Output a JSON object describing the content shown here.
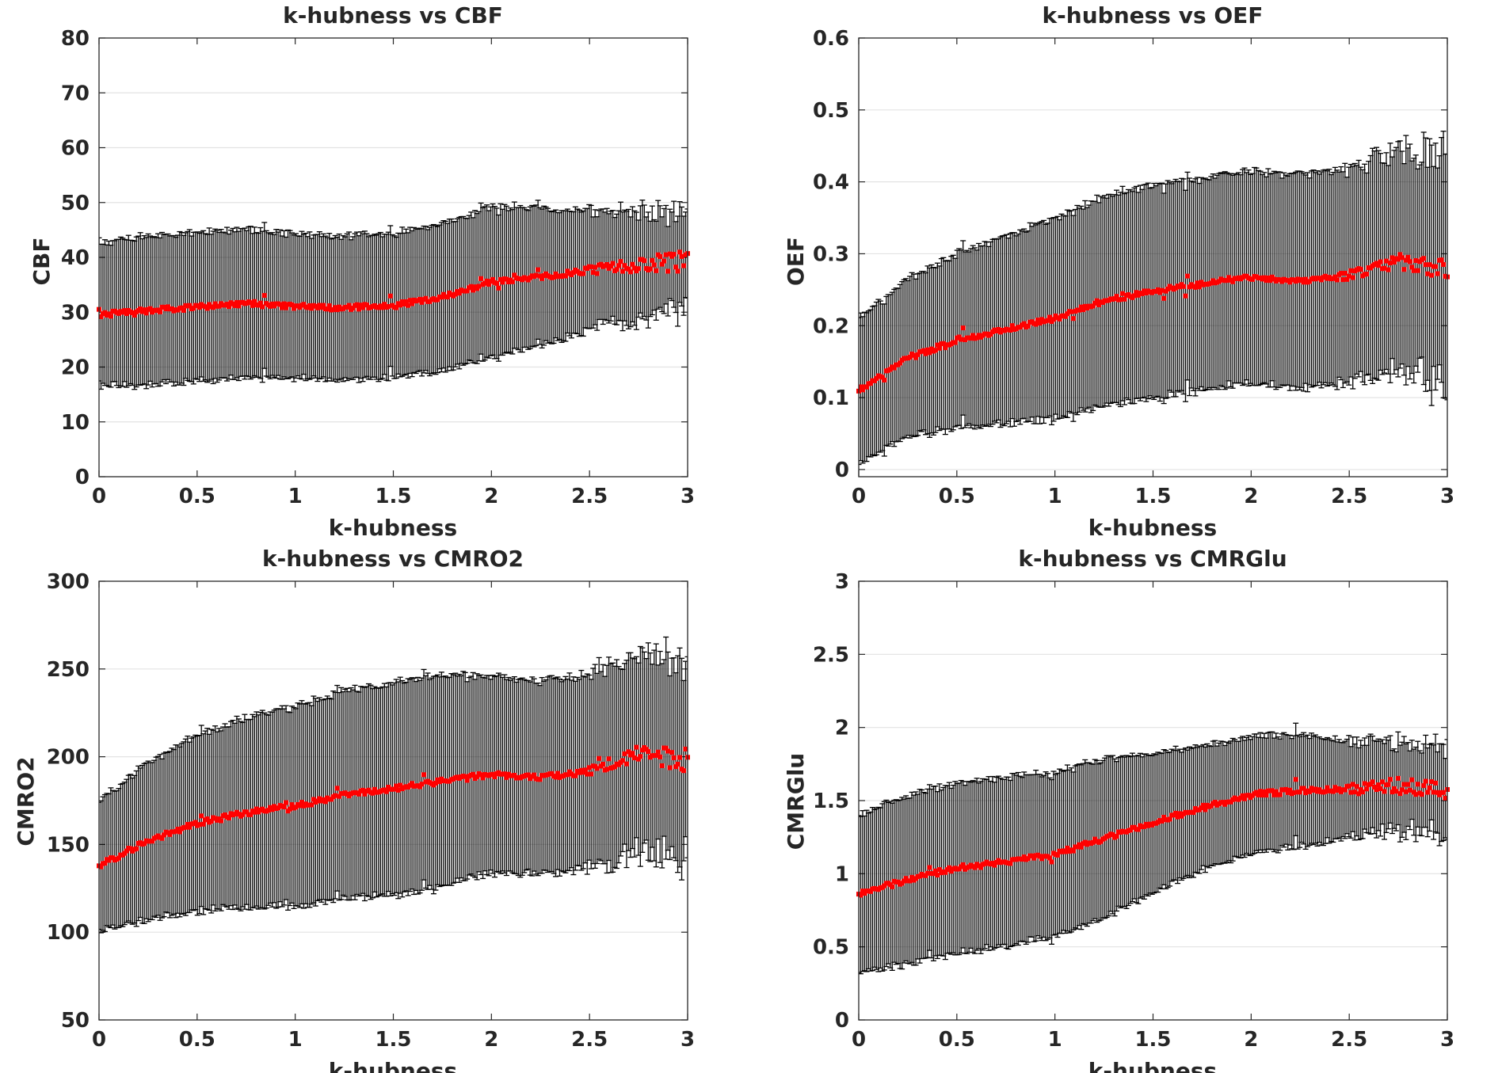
{
  "chart_data": [
    {
      "type": "scatter",
      "title": "k-hubness vs CBF",
      "xlabel": "k-hubness",
      "ylabel": "CBF",
      "xlim": [
        0,
        3
      ],
      "ylim": [
        0,
        80
      ],
      "xticks": [
        "0",
        "0.5",
        "1",
        "1.5",
        "2",
        "2.5",
        "3"
      ],
      "yticks": [
        "0",
        "10",
        "20",
        "30",
        "40",
        "50",
        "60",
        "70",
        "80"
      ],
      "grid": true,
      "marker_color": "#ff0000",
      "errorbar_color": "#000000",
      "x": [
        0,
        0.25,
        0.5,
        0.75,
        1,
        1.25,
        1.5,
        1.75,
        2,
        2.25,
        2.5,
        2.75,
        3
      ],
      "mean": [
        29.5,
        30.3,
        31,
        31.6,
        31,
        30.8,
        31.2,
        32.8,
        35.5,
        36.5,
        37.6,
        38.8,
        39.5
      ],
      "sd": [
        13,
        13.6,
        13.6,
        13.6,
        13.1,
        13,
        13.2,
        13.4,
        13.7,
        12.5,
        10.8,
        9.8,
        9
      ],
      "n_points": 300
    },
    {
      "type": "scatter",
      "title": "k-hubness vs OEF",
      "xlabel": "k-hubness",
      "ylabel": "OEF",
      "xlim": [
        0,
        3
      ],
      "ylim": [
        -0.01,
        0.6
      ],
      "xticks": [
        "0",
        "0.5",
        "1",
        "1.5",
        "2",
        "2.5",
        "3"
      ],
      "yticks": [
        "0",
        "0.1",
        "0.2",
        "0.3",
        "0.4",
        "0.5",
        "0.6"
      ],
      "grid": true,
      "marker_color": "#ff0000",
      "errorbar_color": "#000000",
      "x": [
        0,
        0.25,
        0.5,
        0.75,
        1,
        1.25,
        1.5,
        1.75,
        2,
        2.25,
        2.5,
        2.75,
        3
      ],
      "mean": [
        0.11,
        0.155,
        0.18,
        0.195,
        0.21,
        0.235,
        0.248,
        0.258,
        0.268,
        0.262,
        0.27,
        0.29,
        0.28
      ],
      "sd": [
        0.1,
        0.11,
        0.12,
        0.13,
        0.14,
        0.145,
        0.148,
        0.148,
        0.148,
        0.148,
        0.148,
        0.155,
        0.16
      ],
      "n_points": 300
    },
    {
      "type": "scatter",
      "title": "k-hubness vs CMRO2",
      "xlabel": "k-hubness",
      "ylabel": "CMRO2",
      "xlim": [
        0,
        3
      ],
      "ylim": [
        50,
        300
      ],
      "xticks": [
        "0",
        "0.5",
        "1",
        "1.5",
        "2",
        "2.5",
        "3"
      ],
      "yticks": [
        "50",
        "100",
        "150",
        "200",
        "250",
        "300"
      ],
      "grid": true,
      "marker_color": "#ff0000",
      "errorbar_color": "#000000",
      "x": [
        0,
        0.25,
        0.5,
        0.75,
        1,
        1.25,
        1.5,
        1.75,
        2,
        2.25,
        2.5,
        2.75,
        3
      ],
      "mean": [
        138,
        152,
        162,
        168,
        172,
        178,
        182,
        186,
        190,
        188,
        192,
        202,
        198
      ],
      "sd": [
        37,
        45,
        50,
        54,
        57,
        59,
        61,
        60,
        56,
        55,
        55,
        57,
        58
      ],
      "n_points": 300
    },
    {
      "type": "scatter",
      "title": "k-hubness vs CMRGlu",
      "xlabel": "k-hubness",
      "ylabel": "CMRGlu",
      "xlim": [
        0,
        3
      ],
      "ylim": [
        0,
        3
      ],
      "xticks": [
        "0",
        "0.5",
        "1",
        "1.5",
        "2",
        "2.5",
        "3"
      ],
      "yticks": [
        "0",
        "0.5",
        "1",
        "1.5",
        "2",
        "2.5",
        "3"
      ],
      "grid": true,
      "marker_color": "#ff0000",
      "errorbar_color": "#000000",
      "x": [
        0,
        0.25,
        0.5,
        0.75,
        1,
        1.25,
        1.5,
        1.75,
        2,
        2.25,
        2.5,
        2.75,
        3
      ],
      "mean": [
        0.86,
        0.96,
        1.04,
        1.08,
        1.13,
        1.24,
        1.35,
        1.45,
        1.54,
        1.57,
        1.58,
        1.6,
        1.56
      ],
      "sd": [
        0.54,
        0.58,
        0.58,
        0.58,
        0.56,
        0.54,
        0.48,
        0.42,
        0.4,
        0.38,
        0.33,
        0.3,
        0.3
      ],
      "n_points": 300
    }
  ]
}
